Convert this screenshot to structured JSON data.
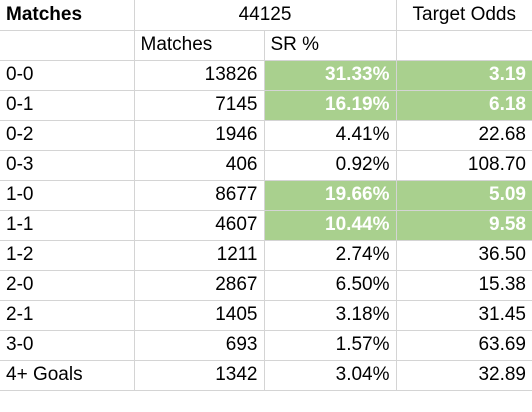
{
  "header": {
    "title": "Matches",
    "total": "44125",
    "target_odds_label": "Target Odds"
  },
  "subheader": {
    "matches_label": "Matches",
    "sr_label": "SR %"
  },
  "colors": {
    "highlight_bg": "#a9d08e",
    "highlight_text": "#ffffff"
  },
  "rows": [
    {
      "score": "0-0",
      "matches": "13826",
      "sr": "31.33%",
      "odds": "3.19",
      "highlight": true
    },
    {
      "score": "0-1",
      "matches": "7145",
      "sr": "16.19%",
      "odds": "6.18",
      "highlight": true
    },
    {
      "score": "0-2",
      "matches": "1946",
      "sr": "4.41%",
      "odds": "22.68",
      "highlight": false
    },
    {
      "score": "0-3",
      "matches": "406",
      "sr": "0.92%",
      "odds": "108.70",
      "highlight": false
    },
    {
      "score": "1-0",
      "matches": "8677",
      "sr": "19.66%",
      "odds": "5.09",
      "highlight": true
    },
    {
      "score": "1-1",
      "matches": "4607",
      "sr": "10.44%",
      "odds": "9.58",
      "highlight": true
    },
    {
      "score": "1-2",
      "matches": "1211",
      "sr": "2.74%",
      "odds": "36.50",
      "highlight": false
    },
    {
      "score": "2-0",
      "matches": "2867",
      "sr": "6.50%",
      "odds": "15.38",
      "highlight": false
    },
    {
      "score": "2-1",
      "matches": "1405",
      "sr": "3.18%",
      "odds": "31.45",
      "highlight": false
    },
    {
      "score": "3-0",
      "matches": "693",
      "sr": "1.57%",
      "odds": "63.69",
      "highlight": false
    },
    {
      "score": "4+ Goals",
      "matches": "1342",
      "sr": "3.04%",
      "odds": "32.89",
      "highlight": false
    }
  ]
}
